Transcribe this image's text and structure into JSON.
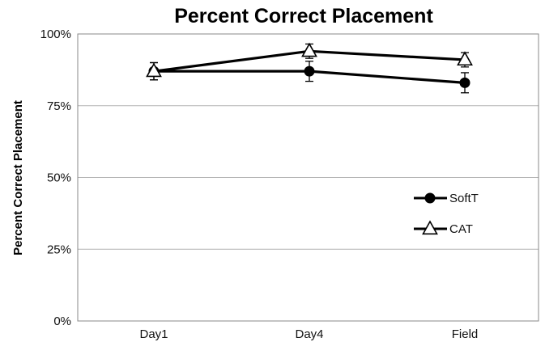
{
  "chart_data": {
    "type": "line",
    "title": "Percent Correct Placement",
    "xlabel": "",
    "ylabel": "Percent Correct Placement",
    "categories": [
      "Day1",
      "Day4",
      "Field"
    ],
    "ylim": [
      0,
      100
    ],
    "yticks": [
      "0%",
      "25%",
      "50%",
      "75%",
      "100%"
    ],
    "ytick_values": [
      0,
      25,
      50,
      75,
      100
    ],
    "grid": true,
    "legend_position": "right",
    "series": [
      {
        "name": "SoftT",
        "marker": "filled-circle",
        "values": [
          87,
          87,
          83
        ],
        "error": [
          3,
          3.5,
          3.5
        ]
      },
      {
        "name": "CAT",
        "marker": "open-triangle",
        "values": [
          87,
          94,
          91
        ],
        "error": [
          3,
          2.5,
          2.5
        ]
      }
    ],
    "colors": {
      "line": "#000000",
      "grid": "#b3b3b3"
    }
  }
}
